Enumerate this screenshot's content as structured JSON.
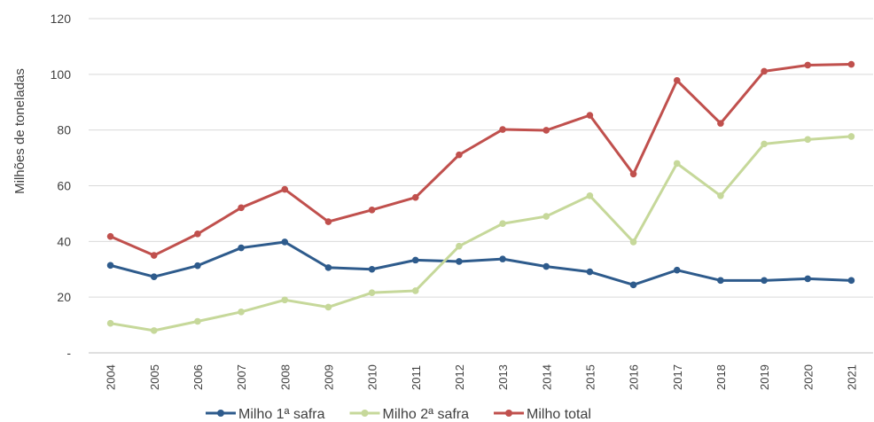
{
  "chart_data": {
    "type": "line",
    "title": "",
    "xlabel": "",
    "ylabel": "Milhões de toneladas",
    "ylim": [
      0,
      120
    ],
    "y_ticks": [
      "-",
      "20",
      "40",
      "60",
      "80",
      "100",
      "120"
    ],
    "categories": [
      "2004",
      "2005",
      "2006",
      "2007",
      "2008",
      "2009",
      "2010",
      "2011",
      "2012",
      "2013",
      "2014",
      "2015",
      "2016",
      "2017",
      "2018",
      "2019",
      "2020",
      "2021"
    ],
    "grid": "horizontal",
    "legend_position": "bottom",
    "series": [
      {
        "name": "Milho 1ª safra",
        "color": "#2e5b8c",
        "values": [
          31.4,
          27.3,
          31.3,
          37.7,
          39.8,
          30.6,
          30.0,
          33.3,
          32.8,
          33.7,
          31.0,
          29.1,
          24.4,
          29.7,
          26.0,
          26.0,
          26.6,
          26.0
        ]
      },
      {
        "name": "Milho 2ª safra",
        "color": "#c6d89a",
        "values": [
          10.6,
          8.0,
          11.3,
          14.7,
          19.0,
          16.4,
          21.6,
          22.3,
          38.3,
          46.4,
          49.0,
          56.4,
          39.8,
          68.0,
          56.4,
          75.0,
          76.6,
          77.7
        ]
      },
      {
        "name": "Milho total",
        "color": "#c0504d",
        "values": [
          41.8,
          35.0,
          42.7,
          52.1,
          58.7,
          47.1,
          51.3,
          55.8,
          71.1,
          80.2,
          79.9,
          85.3,
          64.2,
          97.8,
          82.4,
          101.1,
          103.3,
          103.6
        ]
      }
    ]
  }
}
